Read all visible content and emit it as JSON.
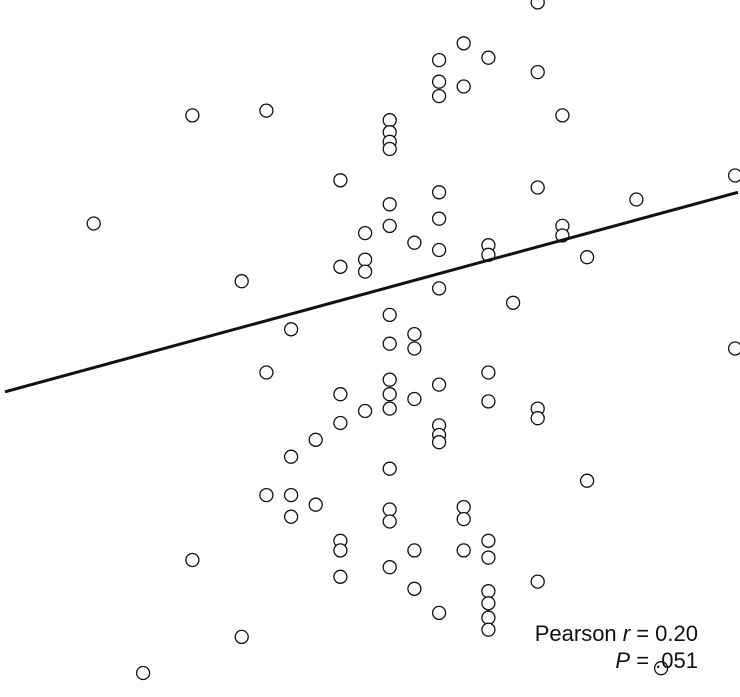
{
  "chart_data": {
    "type": "scatter",
    "title": "",
    "xlabel": "",
    "ylabel": "",
    "grid": false,
    "xlim": [
      0,
      30
    ],
    "ylim": [
      -16,
      13
    ],
    "points": [
      {
        "x": 21.8,
        "y": 12.9
      },
      {
        "x": 18.8,
        "y": 11.2
      },
      {
        "x": 17.8,
        "y": 10.5
      },
      {
        "x": 19.8,
        "y": 10.6
      },
      {
        "x": 17.8,
        "y": 9.6
      },
      {
        "x": 18.8,
        "y": 9.4
      },
      {
        "x": 21.8,
        "y": 10.0
      },
      {
        "x": 17.8,
        "y": 9.0
      },
      {
        "x": 7.8,
        "y": 8.2
      },
      {
        "x": 10.8,
        "y": 8.4
      },
      {
        "x": 22.8,
        "y": 8.2
      },
      {
        "x": 15.8,
        "y": 8.0
      },
      {
        "x": 15.8,
        "y": 7.5
      },
      {
        "x": 15.8,
        "y": 7.1
      },
      {
        "x": 15.8,
        "y": 6.8
      },
      {
        "x": 13.8,
        "y": 5.5
      },
      {
        "x": 21.8,
        "y": 5.2
      },
      {
        "x": 29.8,
        "y": 5.7
      },
      {
        "x": 17.8,
        "y": 5.0
      },
      {
        "x": 25.8,
        "y": 4.7
      },
      {
        "x": 15.8,
        "y": 4.5
      },
      {
        "x": 3.8,
        "y": 3.7
      },
      {
        "x": 17.8,
        "y": 3.9
      },
      {
        "x": 15.8,
        "y": 3.6
      },
      {
        "x": 22.8,
        "y": 3.6
      },
      {
        "x": 22.8,
        "y": 3.2
      },
      {
        "x": 14.8,
        "y": 3.3
      },
      {
        "x": 16.8,
        "y": 2.9
      },
      {
        "x": 17.8,
        "y": 2.6
      },
      {
        "x": 19.8,
        "y": 2.8
      },
      {
        "x": 19.8,
        "y": 2.4
      },
      {
        "x": 14.8,
        "y": 2.2
      },
      {
        "x": 23.8,
        "y": 2.3
      },
      {
        "x": 13.8,
        "y": 1.9
      },
      {
        "x": 14.8,
        "y": 1.7
      },
      {
        "x": 9.8,
        "y": 1.3
      },
      {
        "x": 17.8,
        "y": 1.0
      },
      {
        "x": 20.8,
        "y": 0.4
      },
      {
        "x": 15.8,
        "y": -0.1
      },
      {
        "x": 11.8,
        "y": -0.7
      },
      {
        "x": 16.8,
        "y": -0.9
      },
      {
        "x": 15.8,
        "y": -1.3
      },
      {
        "x": 16.8,
        "y": -1.5
      },
      {
        "x": 29.8,
        "y": -1.5
      },
      {
        "x": 10.8,
        "y": -2.5
      },
      {
        "x": 19.8,
        "y": -2.5
      },
      {
        "x": 15.8,
        "y": -2.8
      },
      {
        "x": 17.8,
        "y": -3.0
      },
      {
        "x": 13.8,
        "y": -3.4
      },
      {
        "x": 15.8,
        "y": -3.4
      },
      {
        "x": 16.8,
        "y": -3.6
      },
      {
        "x": 19.8,
        "y": -3.7
      },
      {
        "x": 21.8,
        "y": -4.0
      },
      {
        "x": 21.8,
        "y": -4.4
      },
      {
        "x": 15.8,
        "y": -4.0
      },
      {
        "x": 14.8,
        "y": -4.1
      },
      {
        "x": 13.8,
        "y": -4.6
      },
      {
        "x": 17.8,
        "y": -4.7
      },
      {
        "x": 17.8,
        "y": -5.1
      },
      {
        "x": 17.8,
        "y": -5.4
      },
      {
        "x": 12.8,
        "y": -5.3
      },
      {
        "x": 11.8,
        "y": -6.0
      },
      {
        "x": 15.8,
        "y": -6.5
      },
      {
        "x": 23.8,
        "y": -7.0
      },
      {
        "x": 10.8,
        "y": -7.6
      },
      {
        "x": 11.8,
        "y": -7.6
      },
      {
        "x": 12.8,
        "y": -8.0
      },
      {
        "x": 18.8,
        "y": -8.1
      },
      {
        "x": 18.8,
        "y": -8.6
      },
      {
        "x": 11.8,
        "y": -8.5
      },
      {
        "x": 15.8,
        "y": -8.2
      },
      {
        "x": 15.8,
        "y": -8.7
      },
      {
        "x": 13.8,
        "y": -9.5
      },
      {
        "x": 13.8,
        "y": -9.9
      },
      {
        "x": 16.8,
        "y": -9.9
      },
      {
        "x": 18.8,
        "y": -9.9
      },
      {
        "x": 19.8,
        "y": -9.5
      },
      {
        "x": 19.8,
        "y": -10.2
      },
      {
        "x": 7.8,
        "y": -10.3
      },
      {
        "x": 15.8,
        "y": -10.6
      },
      {
        "x": 13.8,
        "y": -11.0
      },
      {
        "x": 21.8,
        "y": -11.2
      },
      {
        "x": 16.8,
        "y": -11.5
      },
      {
        "x": 19.8,
        "y": -11.6
      },
      {
        "x": 19.8,
        "y": -12.1
      },
      {
        "x": 19.8,
        "y": -12.7
      },
      {
        "x": 19.8,
        "y": -13.2
      },
      {
        "x": 17.8,
        "y": -12.5
      },
      {
        "x": 9.8,
        "y": -13.5
      },
      {
        "x": 5.8,
        "y": -15.0
      },
      {
        "x": 26.8,
        "y": -14.8
      }
    ],
    "fit_line": {
      "x": [
        0,
        30
      ],
      "y": [
        -3.3,
        5.0
      ]
    },
    "annotations": [
      "Pearson r = 0.20",
      "P = .051"
    ]
  },
  "stats": {
    "pearson_prefix": "Pearson ",
    "r_symbol": "r",
    "r_value": " = 0.20",
    "p_symbol": "P",
    "p_value": " = .051"
  },
  "colors": {
    "point_stroke": "#111111",
    "point_fill": "#ffffff",
    "fit_line": "#111111",
    "background": "#ffffff"
  }
}
